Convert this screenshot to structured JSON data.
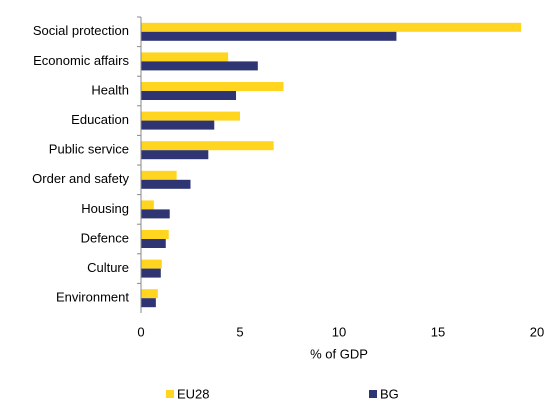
{
  "chart_data": {
    "type": "bar",
    "orientation": "horizontal",
    "x_label": "% of GDP",
    "categories": [
      "Social protection",
      "Economic affairs",
      "Health",
      "Education",
      "Public service",
      "Order and safety",
      "Housing",
      "Defence",
      "Culture",
      "Environment"
    ],
    "series": [
      {
        "name": "EU28",
        "color": "#ffd520",
        "values": [
          19.2,
          4.4,
          7.2,
          5.0,
          6.7,
          1.8,
          0.65,
          1.4,
          1.05,
          0.85
        ]
      },
      {
        "name": "BG",
        "color": "#2e3572",
        "values": [
          12.9,
          5.9,
          4.8,
          3.7,
          3.4,
          2.5,
          1.45,
          1.25,
          1.0,
          0.75
        ]
      }
    ],
    "xlim": [
      0,
      20
    ],
    "xticks": [
      0,
      5,
      10,
      15,
      20
    ],
    "grid": false,
    "legend": "bottom"
  }
}
